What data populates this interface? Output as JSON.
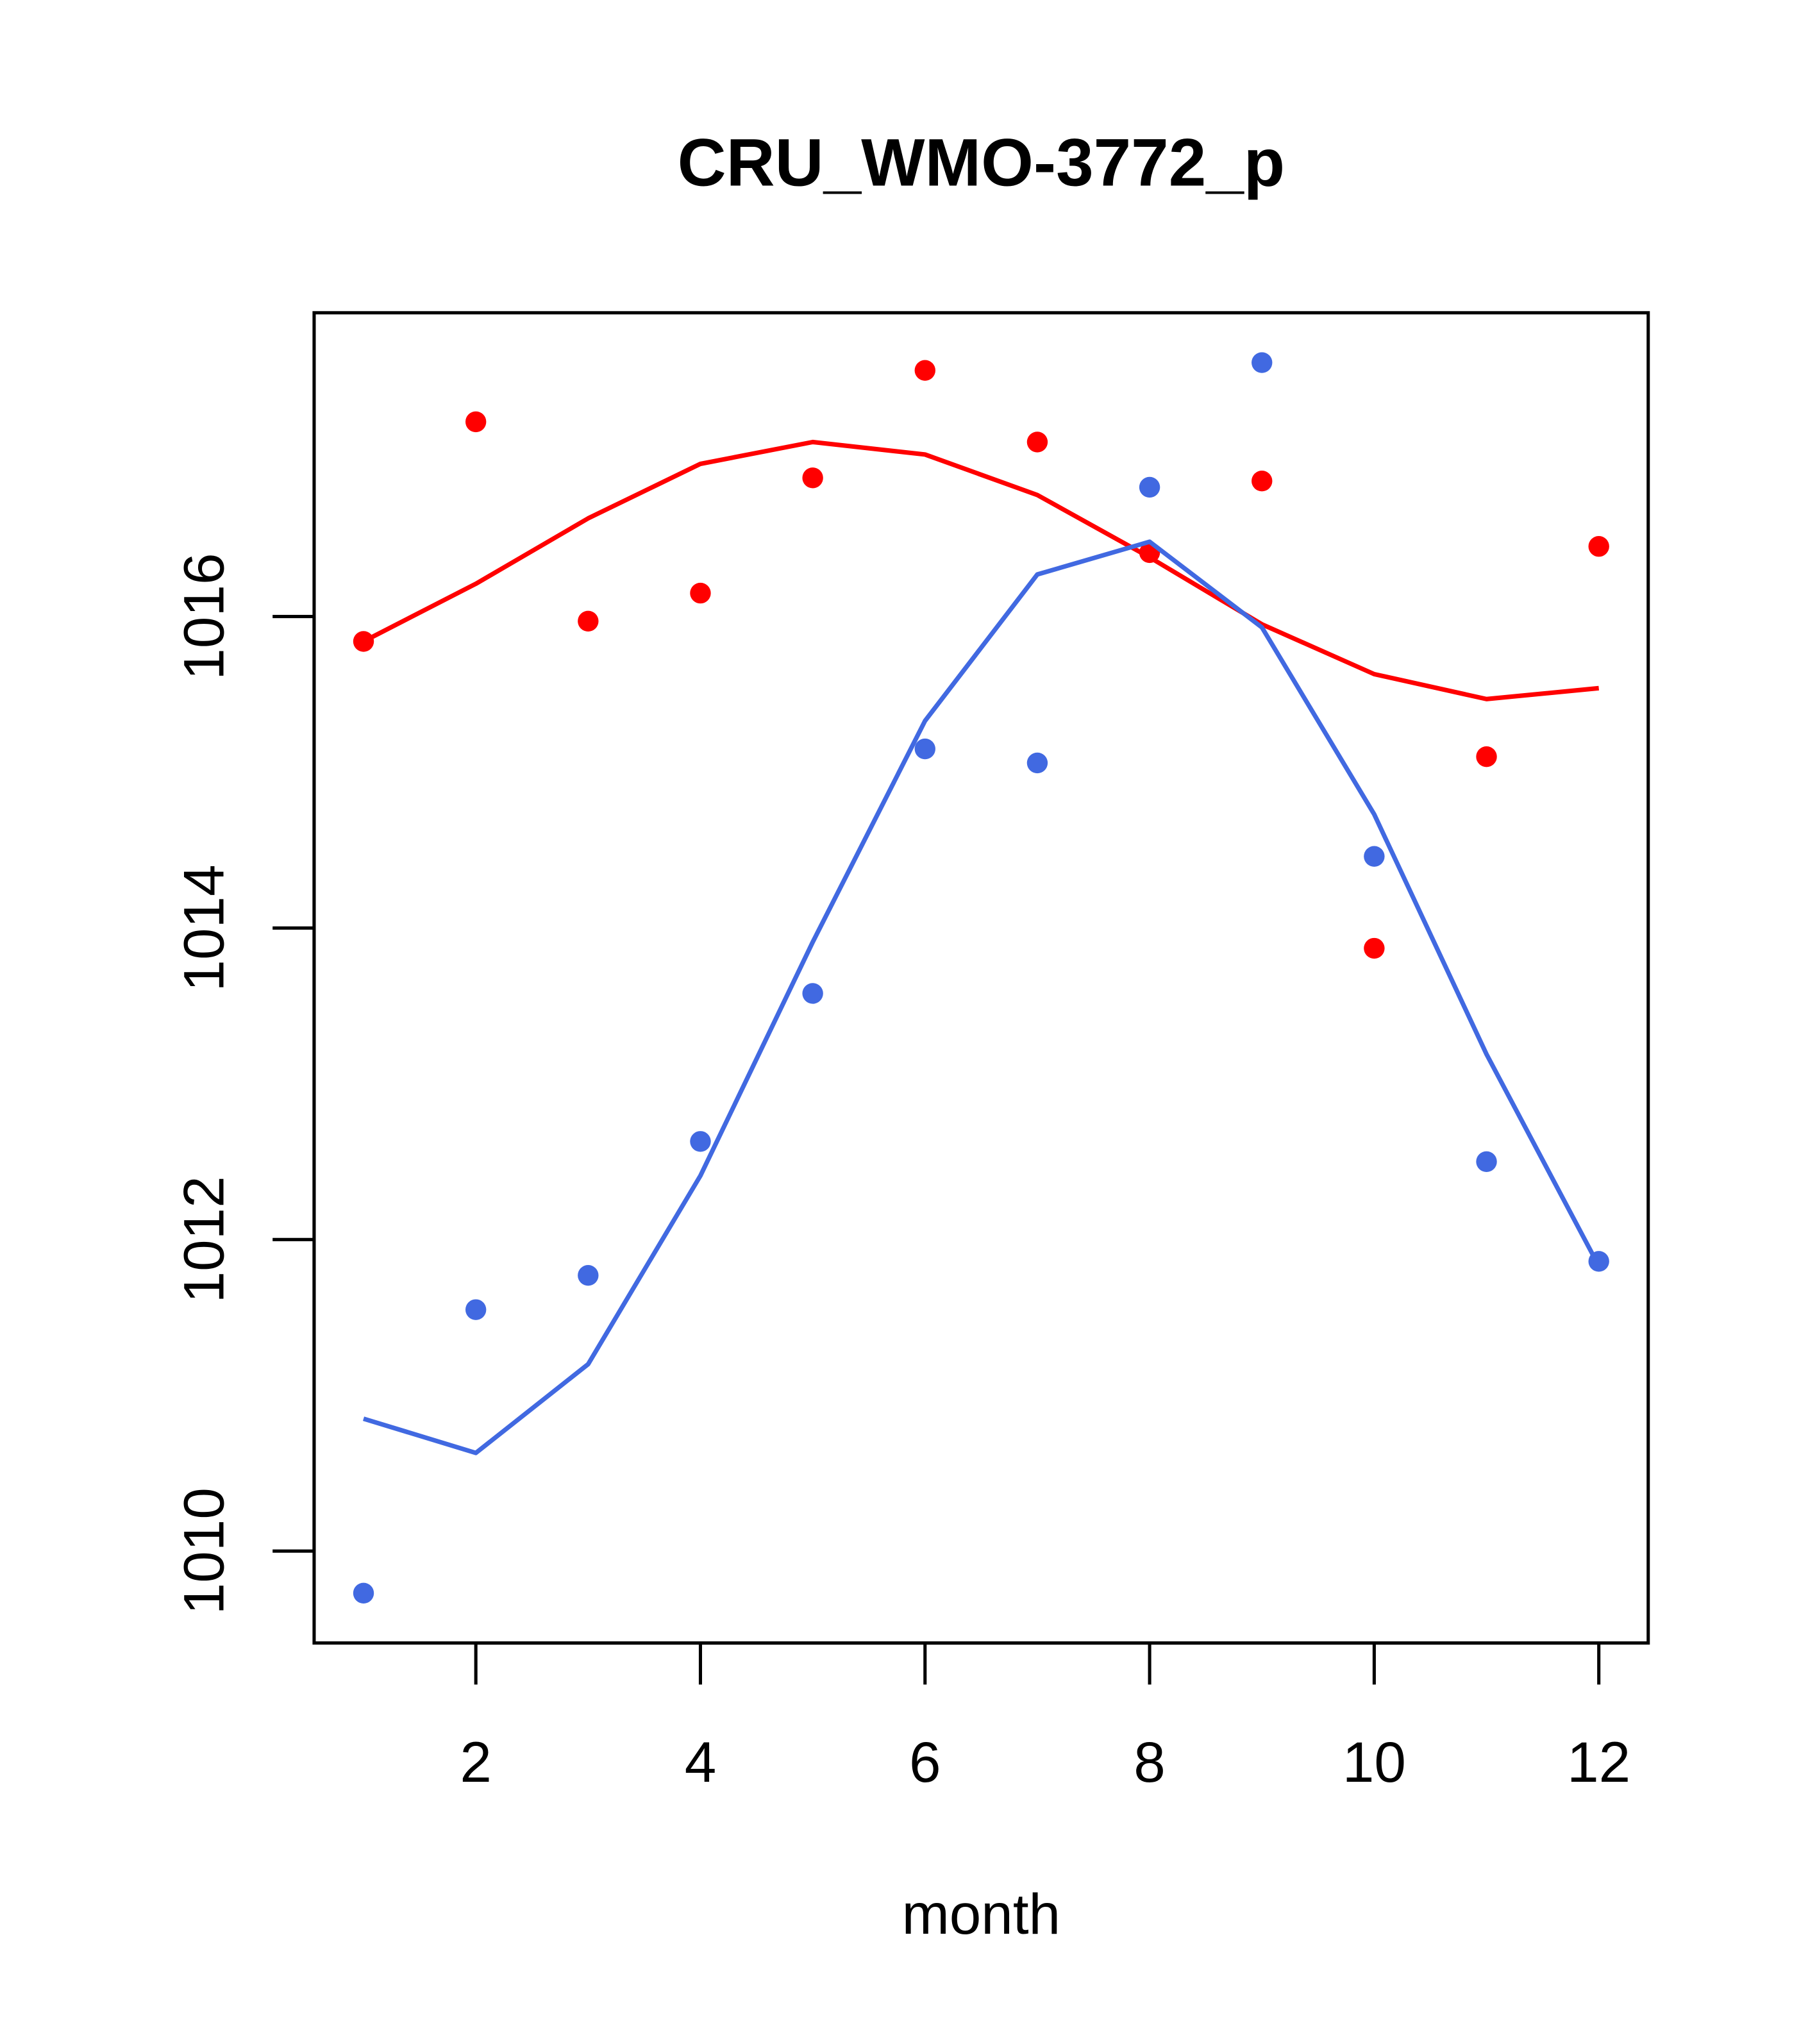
{
  "chart_data": {
    "type": "line",
    "title": "CRU_WMO-3772_p",
    "xlabel": "month",
    "ylabel": "",
    "xlim": [
      0.56,
      12.44
    ],
    "ylim": [
      1009.41,
      1017.95
    ],
    "x_ticks": [
      2,
      4,
      6,
      8,
      10,
      12
    ],
    "y_ticks": [
      1010,
      1012,
      1014,
      1016
    ],
    "grid": false,
    "x": [
      1,
      2,
      3,
      4,
      5,
      6,
      7,
      8,
      9,
      10,
      11,
      12
    ],
    "series": [
      {
        "name": "red points",
        "kind": "points",
        "color": "#ff0000",
        "values": [
          1015.84,
          1017.25,
          1015.97,
          1016.15,
          1016.89,
          1017.58,
          1017.12,
          1016.41,
          1016.87,
          1013.87,
          1015.1,
          1016.45
        ]
      },
      {
        "name": "red line",
        "kind": "line",
        "color": "#ff0000",
        "values": [
          1015.84,
          1016.21,
          1016.63,
          1016.98,
          1017.12,
          1017.04,
          1016.78,
          1016.38,
          1015.95,
          1015.63,
          1015.47,
          1015.54
        ]
      },
      {
        "name": "blue points",
        "kind": "points",
        "color": "#4169e1",
        "values": [
          1009.73,
          1011.55,
          1011.77,
          1012.63,
          1013.58,
          1015.15,
          1015.06,
          1016.83,
          1017.63,
          1014.46,
          1012.5,
          1011.86
        ]
      },
      {
        "name": "blue line",
        "kind": "line",
        "color": "#4169e1",
        "values": [
          1010.85,
          1010.63,
          1011.2,
          1012.41,
          1013.91,
          1015.33,
          1016.27,
          1016.48,
          1015.93,
          1014.73,
          1013.19,
          1011.83
        ]
      }
    ]
  }
}
